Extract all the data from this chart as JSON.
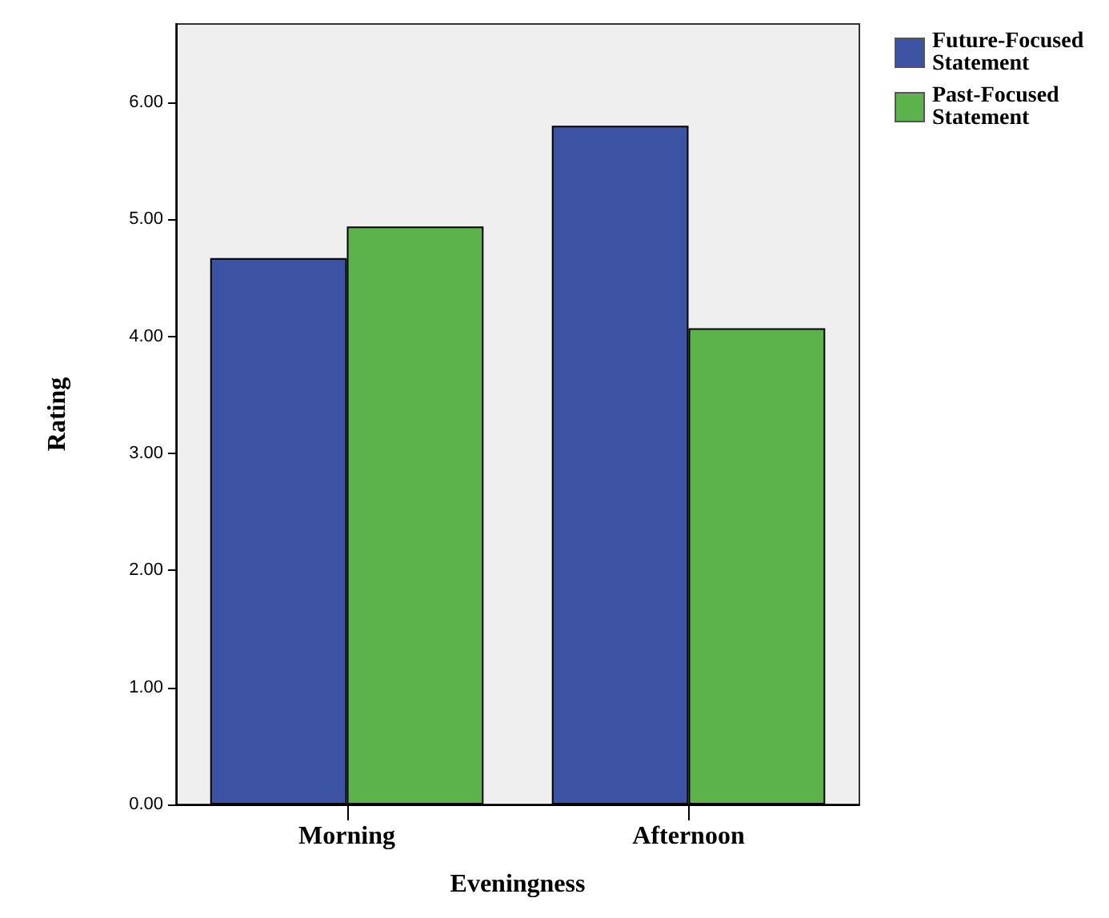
{
  "chart_data": {
    "type": "bar",
    "xlabel": "Eveningness",
    "ylabel": "Rating",
    "categories": [
      "Morning",
      "Afternoon"
    ],
    "series": [
      {
        "name": "Future-Focused Statement",
        "color": "#3c53a4",
        "values": [
          4.67,
          5.8
        ]
      },
      {
        "name": "Past-Focused Statement",
        "color": "#5cb34b",
        "values": [
          4.94,
          4.07
        ]
      }
    ],
    "ylim": [
      0,
      6.67
    ],
    "yticks": [
      {
        "value": 0,
        "label": "0.00"
      },
      {
        "value": 1,
        "label": "1.00"
      },
      {
        "value": 2,
        "label": "2.00"
      },
      {
        "value": 3,
        "label": "3.00"
      },
      {
        "value": 4,
        "label": "4.00"
      },
      {
        "value": 5,
        "label": "5.00"
      },
      {
        "value": 6,
        "label": "6.00"
      }
    ],
    "grid": false,
    "legend": "top right"
  }
}
